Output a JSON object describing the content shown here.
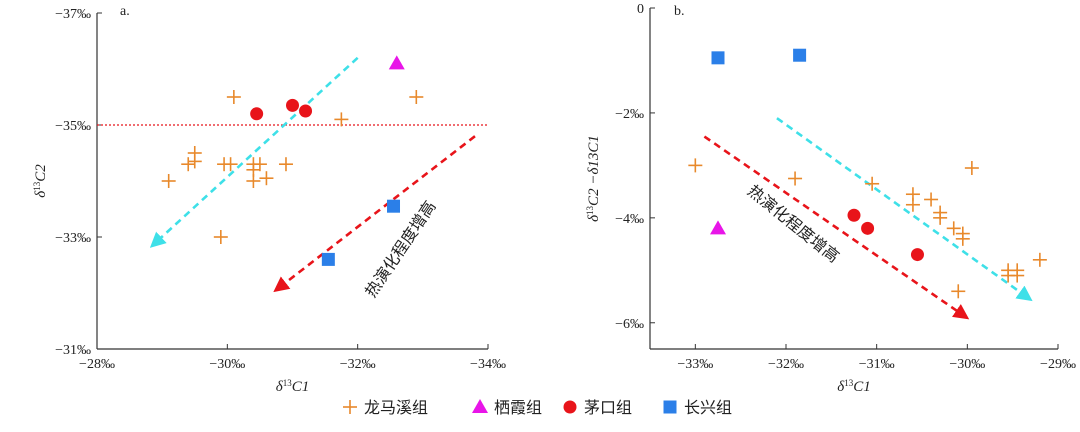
{
  "chart_data": [
    {
      "type": "scatter",
      "panel_label": "a.",
      "xlabel": "δ13C1",
      "ylabel": "δ13C2",
      "xlim": [
        -28,
        -34
      ],
      "ylim": [
        -31,
        -37
      ],
      "xticks": [
        -28,
        -30,
        -32,
        -34
      ],
      "yticks": [
        -31,
        -33,
        -35,
        -37
      ],
      "xtick_labels": [
        "−28‰",
        "−30‰",
        "−32‰",
        "−34‰"
      ],
      "ytick_labels": [
        "−31‰",
        "−33‰",
        "−35‰",
        "−37‰"
      ],
      "reference_line_y": -35,
      "annotation": "热演化程度增高",
      "series": [
        {
          "name": "龙马溪组",
          "marker": "plus",
          "color": "#E8892B",
          "points": [
            [
              -29.1,
              -34.0
            ],
            [
              -29.4,
              -34.3
            ],
            [
              -29.5,
              -34.35
            ],
            [
              -29.5,
              -34.5
            ],
            [
              -29.95,
              -34.3
            ],
            [
              -30.05,
              -34.3
            ],
            [
              -30.1,
              -35.5
            ],
            [
              -30.4,
              -34.2
            ],
            [
              -30.4,
              -34.3
            ],
            [
              -30.4,
              -34.0
            ],
            [
              -30.5,
              -34.3
            ],
            [
              -30.6,
              -34.05
            ],
            [
              -30.9,
              -34.3
            ],
            [
              -29.9,
              -33.0
            ],
            [
              -31.75,
              -35.1
            ],
            [
              -32.9,
              -35.5
            ]
          ]
        },
        {
          "name": "栖霞组",
          "marker": "triangle",
          "color": "#E815E8",
          "points": [
            [
              -32.6,
              -36.1
            ]
          ]
        },
        {
          "name": "茅口组",
          "marker": "circle",
          "color": "#E8141A",
          "points": [
            [
              -30.45,
              -35.2
            ],
            [
              -31.0,
              -35.35
            ],
            [
              -31.2,
              -35.25
            ]
          ]
        },
        {
          "name": "长兴组",
          "marker": "square",
          "color": "#2B7FE8",
          "points": [
            [
              -31.55,
              -32.6
            ],
            [
              -32.55,
              -33.55
            ]
          ]
        }
      ],
      "arrows": [
        {
          "color": "#3EE0E8",
          "from": [
            -32.0,
            -36.2
          ],
          "to": [
            -28.9,
            -32.9
          ]
        },
        {
          "color": "#E8141A",
          "from": [
            -33.8,
            -34.8
          ],
          "to": [
            -30.8,
            -32.1
          ]
        }
      ]
    },
    {
      "type": "scatter",
      "panel_label": "b.",
      "xlabel": "δ13C1",
      "ylabel": "δ13C2 −δ13C1",
      "xlim": [
        -33.5,
        -29
      ],
      "ylim": [
        -6.5,
        0
      ],
      "xticks": [
        -33,
        -32,
        -31,
        -30,
        -29
      ],
      "yticks": [
        -6,
        -4,
        -2,
        0
      ],
      "xtick_labels": [
        "−33‰",
        "−32‰",
        "−31‰",
        "−30‰",
        "−29‰"
      ],
      "ytick_labels": [
        "−6‰",
        "−4‰",
        "−2‰",
        "0"
      ],
      "annotation": "热演化程度增高",
      "series": [
        {
          "name": "龙马溪组",
          "marker": "plus",
          "color": "#E8892B",
          "points": [
            [
              -33.0,
              -3.0
            ],
            [
              -31.9,
              -3.25
            ],
            [
              -31.05,
              -3.35
            ],
            [
              -30.6,
              -3.55
            ],
            [
              -30.6,
              -3.75
            ],
            [
              -30.4,
              -3.65
            ],
            [
              -30.3,
              -3.9
            ],
            [
              -30.3,
              -4.0
            ],
            [
              -30.15,
              -4.2
            ],
            [
              -30.05,
              -4.3
            ],
            [
              -30.05,
              -4.4
            ],
            [
              -29.95,
              -3.05
            ],
            [
              -30.1,
              -5.4
            ],
            [
              -29.55,
              -5.0
            ],
            [
              -29.55,
              -5.1
            ],
            [
              -29.45,
              -5.1
            ],
            [
              -29.45,
              -5.0
            ],
            [
              -29.2,
              -4.8
            ]
          ]
        },
        {
          "name": "栖霞组",
          "marker": "triangle",
          "color": "#E815E8",
          "points": [
            [
              -32.75,
              -4.2
            ]
          ]
        },
        {
          "name": "茅口组",
          "marker": "circle",
          "color": "#E8141A",
          "points": [
            [
              -31.25,
              -3.95
            ],
            [
              -31.1,
              -4.2
            ],
            [
              -30.55,
              -4.7
            ]
          ]
        },
        {
          "name": "长兴组",
          "marker": "square",
          "color": "#2B7FE8",
          "points": [
            [
              -32.75,
              -0.95
            ],
            [
              -31.85,
              -0.9
            ]
          ]
        }
      ],
      "arrows": [
        {
          "color": "#3EE0E8",
          "from": [
            -32.1,
            -2.1
          ],
          "to": [
            -29.35,
            -5.5
          ]
        },
        {
          "color": "#E8141A",
          "from": [
            -32.9,
            -2.45
          ],
          "to": [
            -30.05,
            -5.85
          ]
        }
      ]
    }
  ],
  "legend": [
    {
      "label": "龙马溪组",
      "marker": "plus",
      "color": "#E8892B"
    },
    {
      "label": "栖霞组",
      "marker": "triangle",
      "color": "#E815E8"
    },
    {
      "label": "茅口组",
      "marker": "circle",
      "color": "#E8141A"
    },
    {
      "label": "长兴组",
      "marker": "square",
      "color": "#2B7FE8"
    }
  ]
}
